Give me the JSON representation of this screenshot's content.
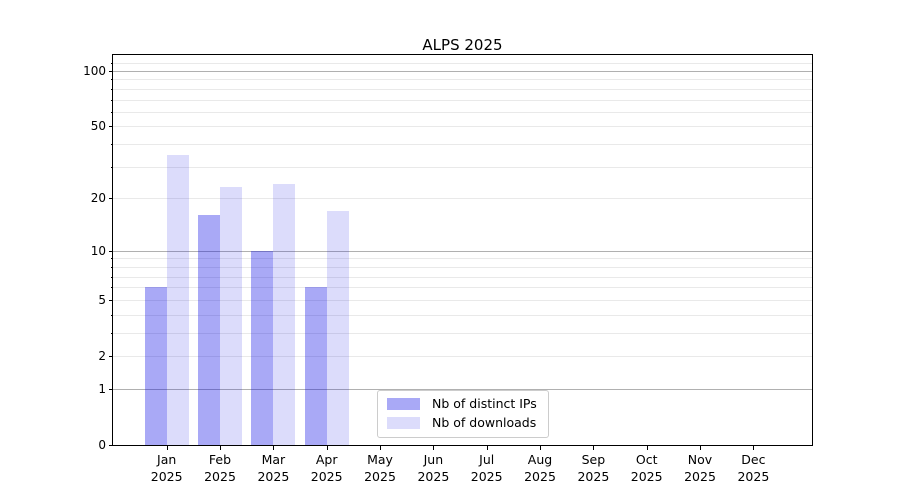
{
  "title": "ALPS 2025",
  "chart_data": {
    "type": "bar",
    "title": "ALPS 2025",
    "categories": [
      "Jan",
      "Feb",
      "Mar",
      "Apr",
      "May",
      "Jun",
      "Jul",
      "Aug",
      "Sep",
      "Oct",
      "Nov",
      "Dec"
    ],
    "category_year": "2025",
    "series": [
      {
        "name": "Nb of distinct IPs",
        "color": "rgba(10,10,230,0.35)",
        "values": [
          6,
          16,
          10,
          6,
          0,
          0,
          0,
          0,
          0,
          0,
          0,
          0
        ]
      },
      {
        "name": "Nb of downloads",
        "color": "rgba(10,10,230,0.14)",
        "values": [
          35,
          23,
          24,
          17,
          0,
          0,
          0,
          0,
          0,
          0,
          0,
          0
        ]
      }
    ],
    "y_axis": {
      "scale": "log10(1+x)",
      "ticks": [
        0,
        1,
        2,
        5,
        10,
        20,
        50,
        100
      ],
      "minor_gridlines": [
        2,
        3,
        4,
        5,
        6,
        7,
        8,
        9,
        20,
        30,
        40,
        50,
        60,
        70,
        80,
        90,
        110
      ],
      "major_gridlines": [
        1,
        10,
        100
      ],
      "max": 122
    },
    "x_axis": {
      "label_lines": 2
    },
    "legend": {
      "position": "lower center",
      "entries": [
        "Nb of distinct IPs",
        "Nb of downloads"
      ]
    },
    "grid": {
      "major_color": "#b0b0b0",
      "minor_color": "#e9e9e9"
    }
  }
}
